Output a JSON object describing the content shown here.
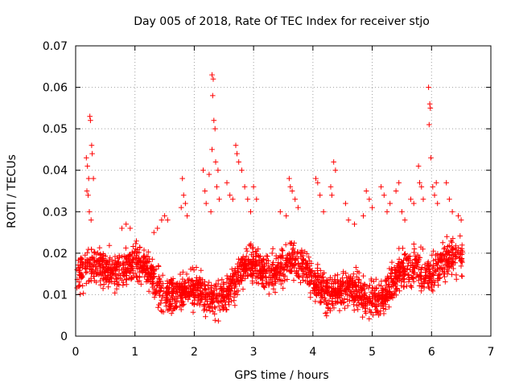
{
  "chart_data": {
    "type": "scatter",
    "title": "Day 005 of 2018, Rate Of TEC Index for receiver stjo",
    "xlabel": "GPS time / hours",
    "ylabel": "ROTI / TECUs",
    "xlim": [
      0,
      7
    ],
    "ylim": [
      0,
      0.07
    ],
    "x_ticks": [
      0,
      1,
      2,
      3,
      4,
      5,
      6,
      7
    ],
    "x_tick_labels": [
      "0",
      "1",
      "2",
      "3",
      "4",
      "5",
      "6",
      "7"
    ],
    "y_ticks": [
      0,
      0.01,
      0.02,
      0.03,
      0.04,
      0.05,
      0.06,
      0.07
    ],
    "y_tick_labels": [
      "0",
      "0.01",
      "0.02",
      "0.03",
      "0.04",
      "0.05",
      "0.06",
      "0.07"
    ],
    "grid": true,
    "marker": "+",
    "series": [
      {
        "name": "ROTI",
        "color": "#ff0000",
        "x_range_hours": [
          0.02,
          6.52
        ],
        "bulk_band": [
          0.005,
          0.025
        ],
        "points": [
          [
            0.18,
            0.043
          ],
          [
            0.2,
            0.041
          ],
          [
            0.22,
            0.038
          ],
          [
            0.24,
            0.053
          ],
          [
            0.25,
            0.052
          ],
          [
            0.27,
            0.046
          ],
          [
            0.28,
            0.044
          ],
          [
            0.3,
            0.038
          ],
          [
            0.19,
            0.035
          ],
          [
            0.21,
            0.034
          ],
          [
            0.23,
            0.03
          ],
          [
            0.26,
            0.028
          ],
          [
            0.78,
            0.026
          ],
          [
            0.85,
            0.027
          ],
          [
            0.92,
            0.026
          ],
          [
            1.32,
            0.025
          ],
          [
            1.38,
            0.026
          ],
          [
            1.45,
            0.028
          ],
          [
            1.5,
            0.029
          ],
          [
            1.55,
            0.028
          ],
          [
            1.8,
            0.038
          ],
          [
            1.82,
            0.034
          ],
          [
            1.85,
            0.032
          ],
          [
            1.88,
            0.029
          ],
          [
            1.78,
            0.031
          ],
          [
            2.15,
            0.04
          ],
          [
            2.18,
            0.035
          ],
          [
            2.25,
            0.039
          ],
          [
            2.2,
            0.032
          ],
          [
            2.28,
            0.03
          ],
          [
            2.3,
            0.063
          ],
          [
            2.32,
            0.062
          ],
          [
            2.31,
            0.058
          ],
          [
            2.33,
            0.052
          ],
          [
            2.35,
            0.05
          ],
          [
            2.3,
            0.045
          ],
          [
            2.36,
            0.042
          ],
          [
            2.4,
            0.04
          ],
          [
            2.38,
            0.036
          ],
          [
            2.42,
            0.033
          ],
          [
            2.55,
            0.037
          ],
          [
            2.6,
            0.034
          ],
          [
            2.65,
            0.033
          ],
          [
            2.7,
            0.046
          ],
          [
            2.72,
            0.044
          ],
          [
            2.75,
            0.042
          ],
          [
            2.8,
            0.04
          ],
          [
            2.85,
            0.036
          ],
          [
            2.9,
            0.033
          ],
          [
            2.95,
            0.03
          ],
          [
            3.0,
            0.036
          ],
          [
            3.05,
            0.033
          ],
          [
            3.45,
            0.03
          ],
          [
            3.55,
            0.029
          ],
          [
            3.6,
            0.038
          ],
          [
            3.62,
            0.036
          ],
          [
            3.65,
            0.035
          ],
          [
            3.7,
            0.033
          ],
          [
            3.75,
            0.031
          ],
          [
            4.05,
            0.038
          ],
          [
            4.08,
            0.037
          ],
          [
            4.12,
            0.034
          ],
          [
            4.18,
            0.03
          ],
          [
            4.3,
            0.036
          ],
          [
            4.35,
            0.042
          ],
          [
            4.38,
            0.04
          ],
          [
            4.32,
            0.034
          ],
          [
            4.55,
            0.032
          ],
          [
            4.6,
            0.028
          ],
          [
            4.7,
            0.027
          ],
          [
            4.85,
            0.029
          ],
          [
            4.9,
            0.035
          ],
          [
            4.95,
            0.033
          ],
          [
            5.0,
            0.031
          ],
          [
            5.15,
            0.036
          ],
          [
            5.2,
            0.034
          ],
          [
            5.25,
            0.03
          ],
          [
            5.3,
            0.032
          ],
          [
            5.4,
            0.035
          ],
          [
            5.45,
            0.037
          ],
          [
            5.5,
            0.03
          ],
          [
            5.55,
            0.028
          ],
          [
            5.65,
            0.033
          ],
          [
            5.7,
            0.032
          ],
          [
            5.78,
            0.041
          ],
          [
            5.8,
            0.037
          ],
          [
            5.83,
            0.036
          ],
          [
            5.86,
            0.033
          ],
          [
            5.95,
            0.06
          ],
          [
            5.97,
            0.056
          ],
          [
            5.98,
            0.055
          ],
          [
            5.96,
            0.051
          ],
          [
            5.99,
            0.043
          ],
          [
            6.02,
            0.036
          ],
          [
            6.05,
            0.034
          ],
          [
            6.08,
            0.037
          ],
          [
            6.1,
            0.032
          ],
          [
            6.25,
            0.037
          ],
          [
            6.3,
            0.033
          ],
          [
            6.35,
            0.03
          ],
          [
            6.45,
            0.029
          ],
          [
            6.5,
            0.028
          ]
        ]
      }
    ]
  }
}
